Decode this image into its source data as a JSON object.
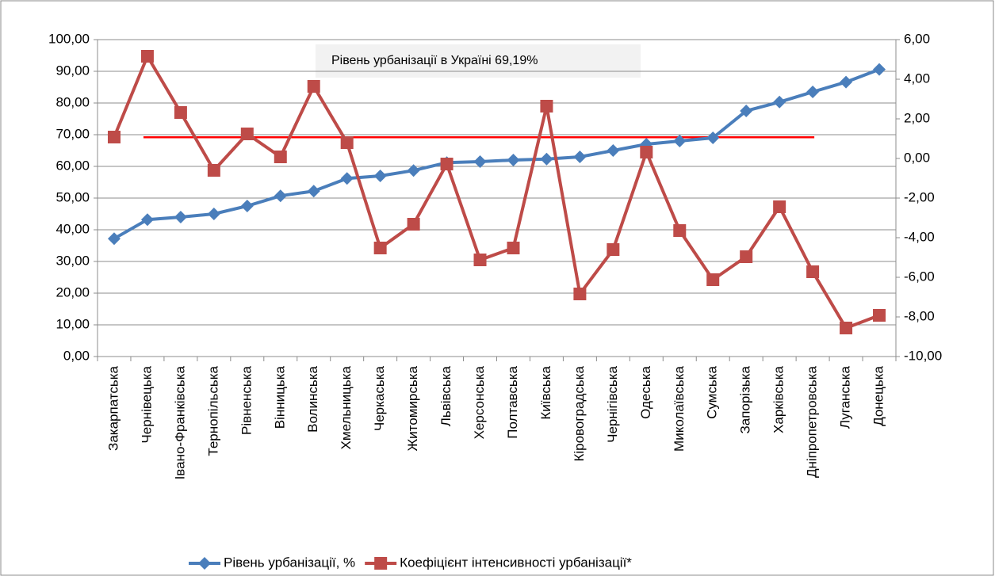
{
  "chart_data": {
    "type": "line",
    "annotation": "Рівень урбанізації в Україні 69,19%",
    "categories": [
      "Закарпатська",
      "Чернівецька",
      "Івано-Франківська",
      "Тернопільська",
      "Рівненська",
      "Вінницька",
      "Волинська",
      "Хмельницька",
      "Черкаська",
      "Житомирська",
      "Львівська",
      "Херсонська",
      "Полтавська",
      "Київська",
      "Кіровоградська",
      "Чернігівська",
      "Одеська",
      "Миколаївська",
      "Сумська",
      "Запорізька",
      "Харківська",
      "Дніпропетровська",
      "Луганська",
      "Донецька"
    ],
    "series": [
      {
        "name": "Рівень урбанізації, %",
        "color": "#4a7ebb",
        "marker": "diamond",
        "values": [
          37.2,
          43.2,
          44,
          45,
          47.5,
          50.7,
          52.2,
          56.2,
          57,
          58.7,
          61.2,
          61.5,
          62,
          62.3,
          63,
          65,
          67,
          68,
          69,
          77.5,
          80.3,
          83.5,
          86.6,
          90.6
        ]
      },
      {
        "name": "Коефіцієнт інтенсивності урбанізації*",
        "color": "#be4b48",
        "marker": "square",
        "axis": "y2",
        "values": [
          1.08,
          5.16,
          2.32,
          -0.6,
          1.24,
          0.08,
          3.64,
          0.8,
          -4.52,
          -3.32,
          -0.28,
          -5.12,
          -4.52,
          2.64,
          -6.84,
          -4.6,
          0.32,
          -3.64,
          -6.12,
          -4.96,
          -2.44,
          -5.72,
          -8.56,
          -7.92
        ]
      }
    ],
    "reference_line": {
      "value": 69.19,
      "color": "#ff0000"
    },
    "ylim": [
      0,
      100
    ],
    "yticks": [
      {
        "value": 0,
        "label": "0,00"
      },
      {
        "value": 10,
        "label": "10,00"
      },
      {
        "value": 20,
        "label": "20,00"
      },
      {
        "value": 30,
        "label": "30,00"
      },
      {
        "value": 40,
        "label": "40,00"
      },
      {
        "value": 50,
        "label": "50,00"
      },
      {
        "value": 60,
        "label": "60,00"
      },
      {
        "value": 70,
        "label": "70,00"
      },
      {
        "value": 80,
        "label": "80,00"
      },
      {
        "value": 90,
        "label": "90,00"
      },
      {
        "value": 100,
        "label": "100,00"
      }
    ],
    "y2lim": [
      -10,
      6
    ],
    "y2ticks": [
      {
        "value": -10,
        "label": "-10,00"
      },
      {
        "value": -8,
        "label": "-8,00"
      },
      {
        "value": -6,
        "label": "-6,00"
      },
      {
        "value": -4,
        "label": "-4,00"
      },
      {
        "value": -2,
        "label": "-2,00"
      },
      {
        "value": 0,
        "label": "0,00"
      },
      {
        "value": 2,
        "label": "2,00"
      },
      {
        "value": 4,
        "label": "4,00"
      },
      {
        "value": 6,
        "label": "6,00"
      }
    ],
    "grid": true
  }
}
